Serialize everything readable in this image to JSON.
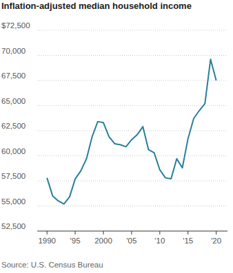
{
  "chart_data": {
    "type": "line",
    "title": "Inflation-adjusted median household income",
    "source": "Source: U.S. Census Bureau",
    "x": [
      1990,
      1991,
      1992,
      1993,
      1994,
      1995,
      1996,
      1997,
      1998,
      1999,
      2000,
      2001,
      2002,
      2003,
      2004,
      2005,
      2006,
      2007,
      2008,
      2009,
      2010,
      2011,
      2012,
      2013,
      2014,
      2015,
      2016,
      2017,
      2018,
      2019,
      2020
    ],
    "values": [
      57800,
      56000,
      55500,
      55200,
      55900,
      57700,
      58500,
      59700,
      61900,
      63400,
      63300,
      61900,
      61200,
      61100,
      60900,
      61600,
      62100,
      62900,
      60600,
      60300,
      58600,
      57800,
      57700,
      59700,
      58800,
      61700,
      63700,
      64500,
      65200,
      69600,
      67500
    ],
    "color": "#2a7d9c",
    "xlim": [
      1989,
      2022
    ],
    "xticks": [
      1990,
      {
        "value": 1995,
        "label": "'95"
      },
      2000,
      {
        "value": 2005,
        "label": "'05"
      },
      {
        "value": 2010,
        "label": "'10"
      },
      {
        "value": 2015,
        "label": "'15"
      },
      {
        "value": 2020,
        "label": "'20"
      }
    ],
    "ylim": [
      52500,
      72500
    ],
    "yticks": [
      {
        "value": 52500,
        "label": "52,500"
      },
      {
        "value": 55000,
        "label": "55,000"
      },
      {
        "value": 57500,
        "label": "57,500"
      },
      {
        "value": 60000,
        "label": "60,000"
      },
      {
        "value": 62500,
        "label": "62,500"
      },
      {
        "value": 65000,
        "label": "65,000"
      },
      {
        "value": 67500,
        "label": "67,500"
      },
      {
        "value": 70000,
        "label": "70,000"
      },
      {
        "value": 72500,
        "label": "$72,500"
      }
    ],
    "grid": true
  }
}
